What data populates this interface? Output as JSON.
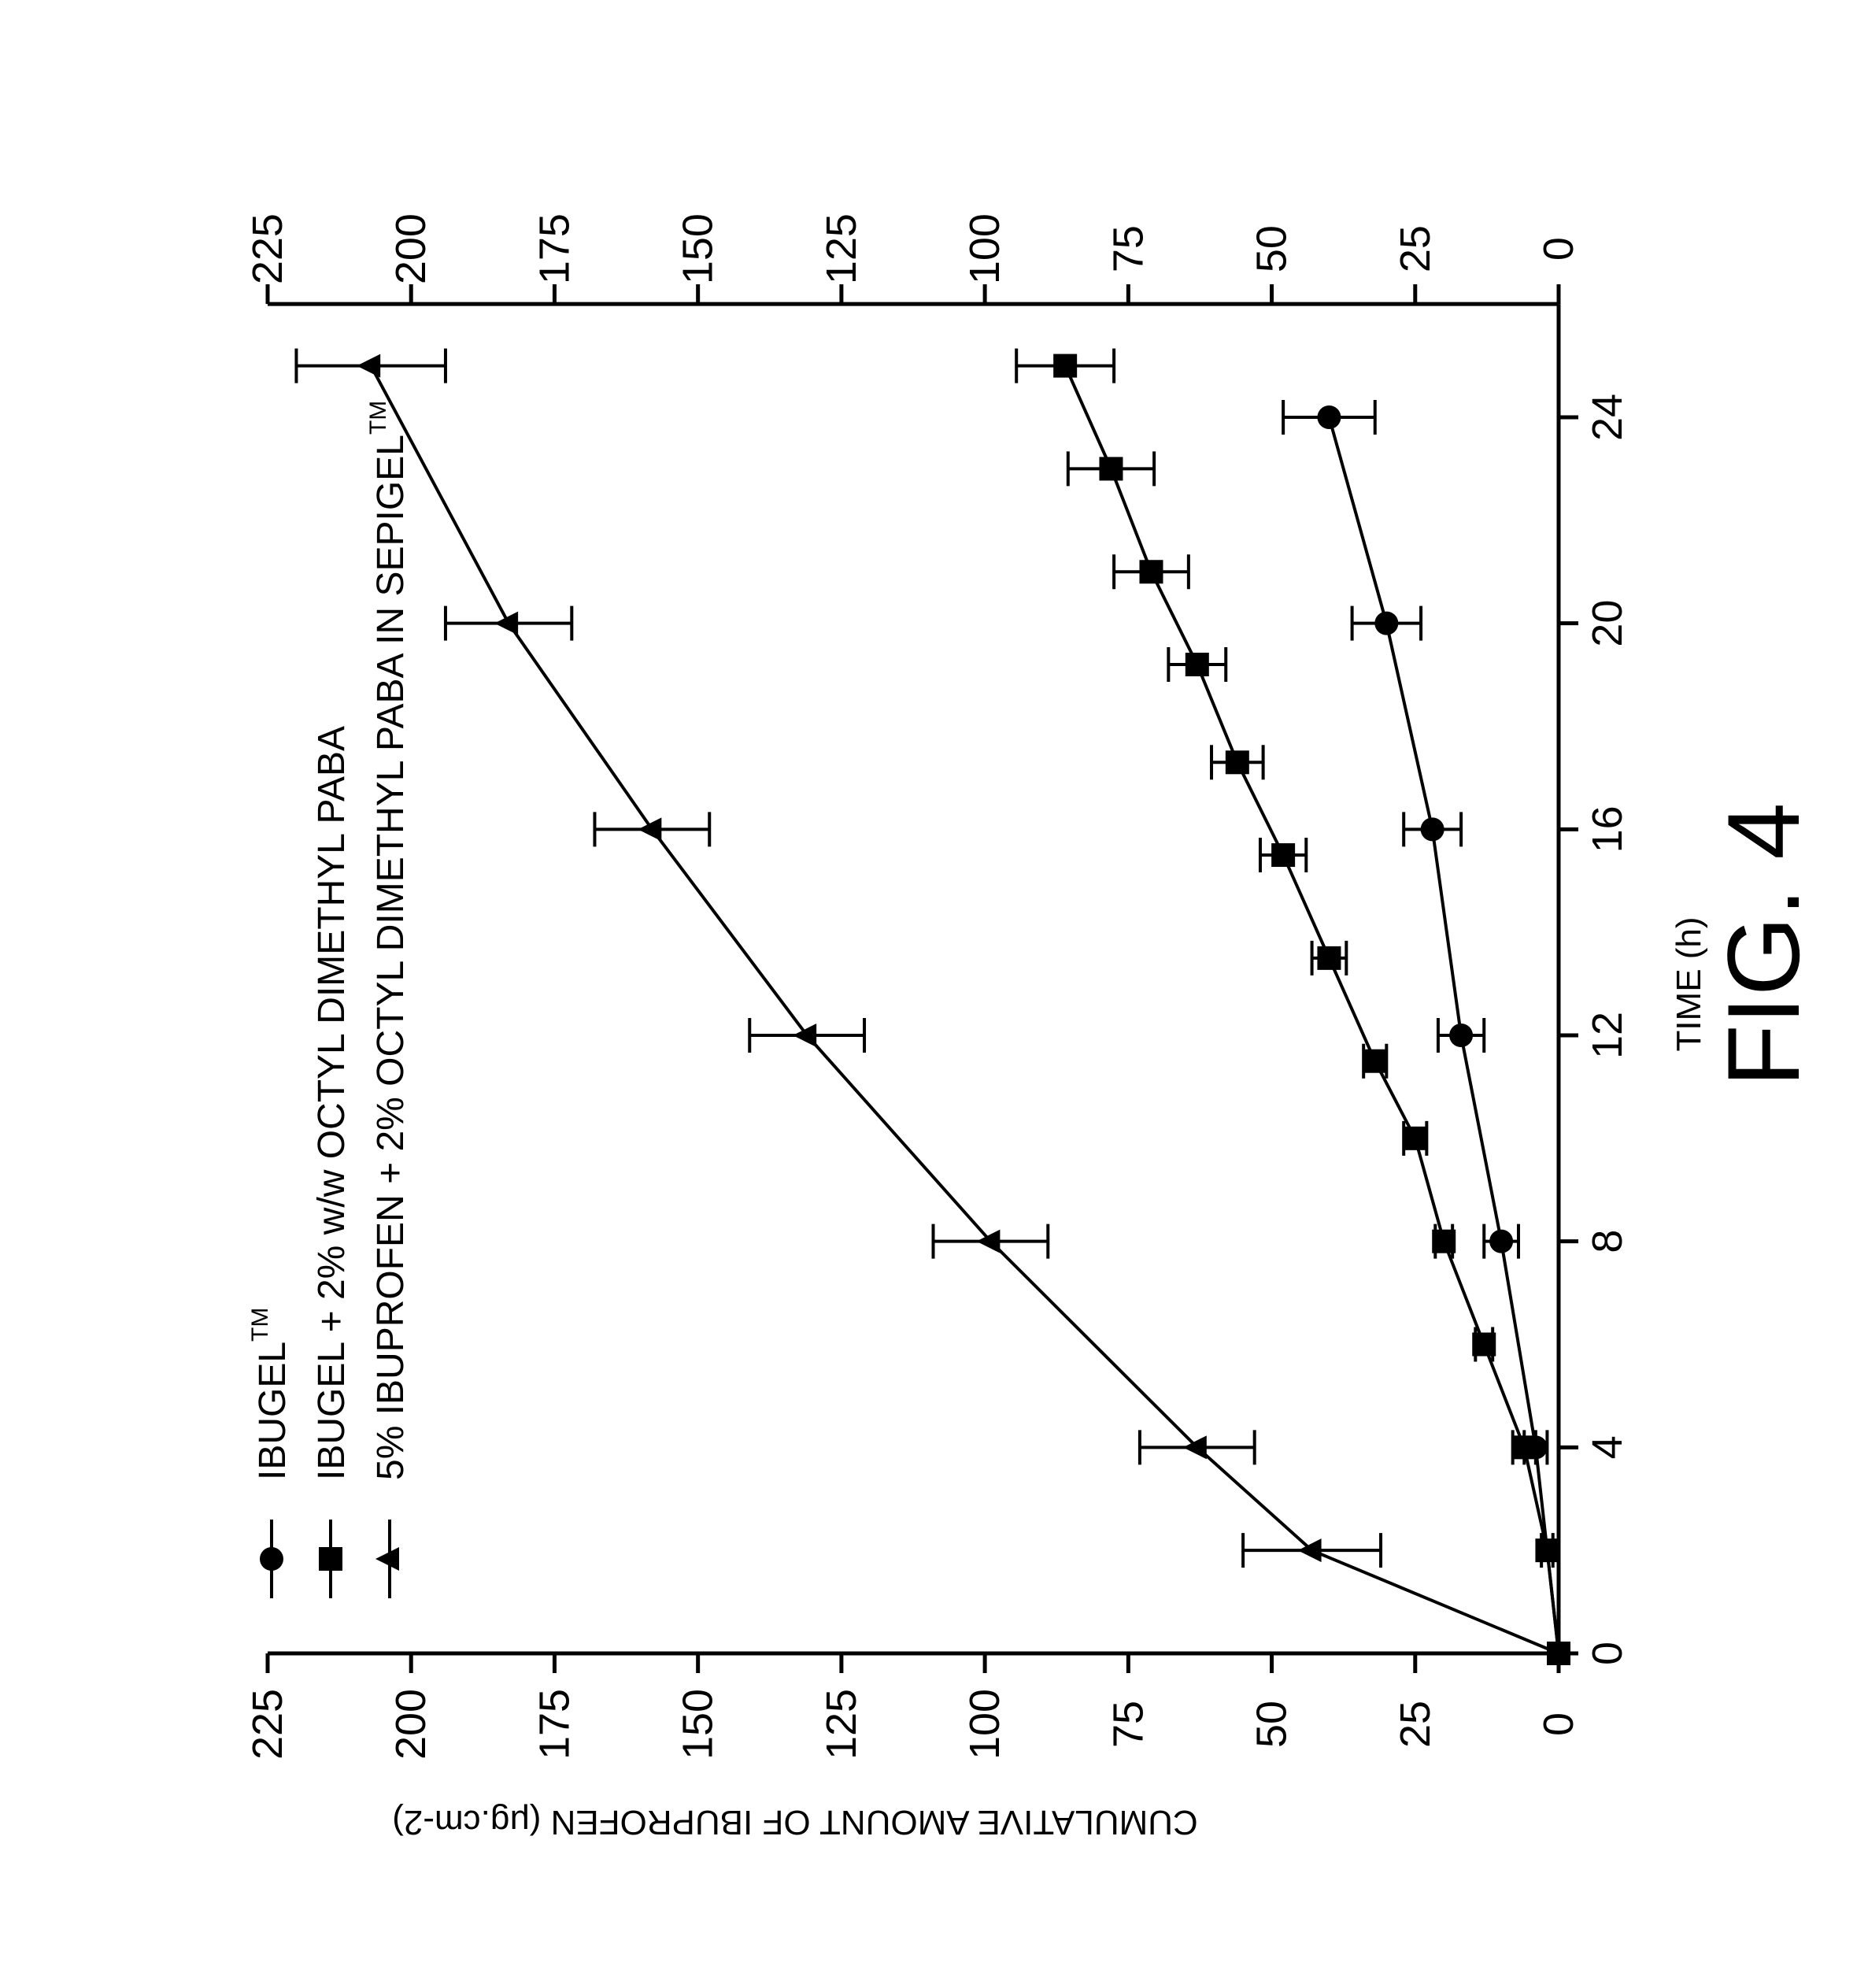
{
  "figure_label": "FIG. 4",
  "chart_data": {
    "type": "line",
    "orientation": "rotated-90-ccw",
    "xlabel": "TIME (h)",
    "ylabel": "CUMULATIVE AMOUNT OF IBUPROFEN (μg.cm-2)",
    "xlim": [
      0,
      24
    ],
    "ylim": [
      0,
      225
    ],
    "x_ticks": [
      0,
      4,
      8,
      12,
      16,
      20,
      24
    ],
    "y_ticks": [
      0,
      25,
      50,
      75,
      100,
      125,
      150,
      175,
      200,
      225
    ],
    "secondary_y_axis": true,
    "grid": false,
    "legend_position": "top-left",
    "series": [
      {
        "name": "IBUGEL",
        "name_sup": "TM",
        "marker": "circle",
        "x": [
          0,
          4,
          8,
          12,
          16,
          20,
          24
        ],
        "y": [
          0,
          4,
          10,
          17,
          22,
          30,
          40
        ],
        "err": [
          0,
          2,
          3,
          4,
          5,
          6,
          8
        ]
      },
      {
        "name": "IBUGEL + 2% w/w OCTYL DIMETHYL PABA",
        "name_sup": "",
        "marker": "square",
        "x": [
          0,
          2,
          4,
          6,
          8,
          10,
          11.5,
          13.5,
          15.5,
          17.3,
          19.2,
          21,
          23,
          25
        ],
        "y": [
          0,
          2,
          6,
          13,
          20,
          25,
          32,
          40,
          48,
          56,
          63,
          71,
          78,
          86
        ],
        "err": [
          0,
          1,
          2,
          1.5,
          1.5,
          2,
          2,
          3,
          4,
          4.5,
          5,
          6.5,
          7.5,
          8.5
        ]
      },
      {
        "name": "5% IBUPROFEN + 2% OCTYL DIMETHYL PABA IN SEPIGEL",
        "name_sup": "TM",
        "marker": "triangle",
        "x": [
          0,
          2,
          4,
          8,
          12,
          16,
          20,
          25
        ],
        "y": [
          0,
          43,
          63,
          99,
          131,
          158,
          183,
          207
        ],
        "err": [
          0,
          12,
          10,
          10,
          10,
          10,
          11,
          13
        ]
      }
    ]
  }
}
